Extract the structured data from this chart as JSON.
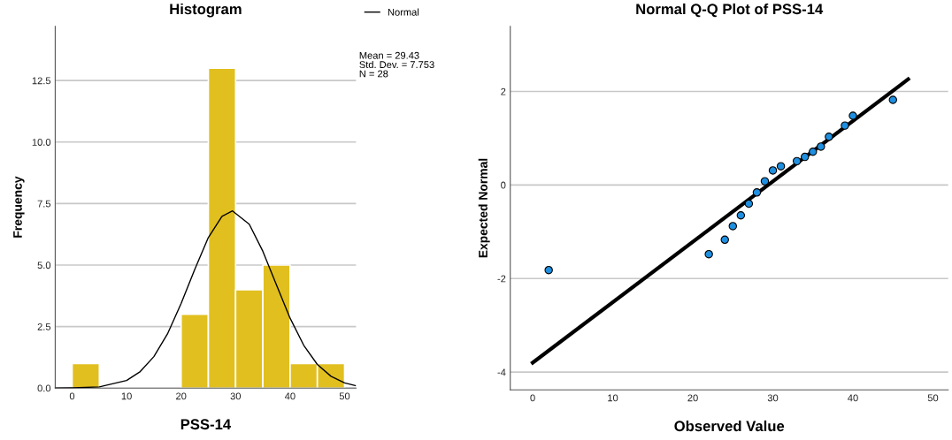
{
  "chart_data": [
    {
      "type": "histogram",
      "title": "Histogram",
      "xlabel": "PSS-14",
      "ylabel": "Frequency",
      "xlim": [
        -3.1,
        52.1
      ],
      "ylim": [
        0,
        14.7
      ],
      "xticks": [
        0,
        10,
        20,
        30,
        40,
        50
      ],
      "yticks": [
        {
          "value": 0,
          "label": "0.0"
        },
        {
          "value": 2.5,
          "label": "2.5"
        },
        {
          "value": 5,
          "label": "5.0"
        },
        {
          "value": 7.5,
          "label": "7.5"
        },
        {
          "value": 10,
          "label": "10.0"
        },
        {
          "value": 12.5,
          "label": "12.5"
        }
      ],
      "grid": "y",
      "legend": "top right",
      "annotations": [
        "Mean = 29.43",
        "Std. Dev. = 7.753",
        "N = 28"
      ],
      "series": [
        {
          "type": "histogram",
          "color": "#e1bf1f",
          "bins": [
            0,
            5,
            10,
            15,
            20,
            25,
            30,
            35,
            40,
            45,
            50
          ],
          "values": [
            1,
            0,
            0,
            0,
            3,
            13,
            4,
            5,
            1,
            1
          ]
        },
        {
          "type": "line",
          "name": "Normal",
          "color": "#000000",
          "x": [
            -3,
            0,
            5,
            10,
            12.5,
            15,
            17.5,
            20,
            22.5,
            25,
            27.5,
            29.43,
            32.5,
            35,
            37.5,
            40,
            42.5,
            45,
            47.5,
            50,
            52
          ],
          "values": [
            0.0,
            0.01,
            0.05,
            0.31,
            0.67,
            1.28,
            2.2,
            3.44,
            4.82,
            6.12,
            6.98,
            7.2,
            6.66,
            5.56,
            4.19,
            2.84,
            1.74,
            0.96,
            0.48,
            0.21,
            0.1
          ]
        }
      ]
    },
    {
      "type": "scatter",
      "title": "Normal Q-Q Plot of PSS-14",
      "xlabel": "Observed Value",
      "ylabel": "Expected Normal",
      "xlim": [
        -2.8,
        51.9
      ],
      "ylim": [
        -4.38,
        3.39
      ],
      "xticks": [
        0,
        10,
        20,
        30,
        40,
        50
      ],
      "yticks": [
        -4,
        -2,
        0,
        2
      ],
      "grid": "y",
      "series": [
        {
          "type": "scatter",
          "marker": "circle",
          "color": "#1f8fdf",
          "x": [
            2,
            22,
            24,
            25,
            26,
            27,
            28,
            29,
            30,
            31,
            33,
            34,
            35,
            36,
            37,
            39,
            40,
            45
          ],
          "values": [
            -1.82,
            -1.48,
            -1.17,
            -0.88,
            -0.65,
            -0.4,
            -0.16,
            0.08,
            0.31,
            0.4,
            0.51,
            0.6,
            0.71,
            0.82,
            1.03,
            1.27,
            1.48,
            1.82
          ]
        },
        {
          "type": "line",
          "color": "#000000",
          "x": [
            0,
            46.9
          ],
          "values": [
            -3.8,
            2.26
          ]
        }
      ]
    }
  ]
}
